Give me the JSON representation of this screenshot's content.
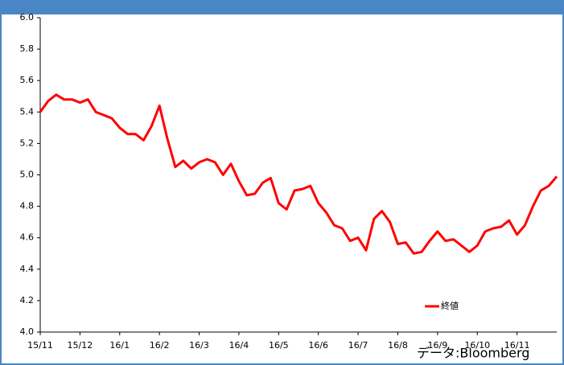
{
  "chart_data": {
    "type": "line",
    "categories": [
      "15/11",
      null,
      null,
      null,
      null,
      "15/12",
      null,
      null,
      null,
      null,
      "16/1",
      null,
      null,
      null,
      null,
      "16/2",
      null,
      null,
      null,
      null,
      "16/3",
      null,
      null,
      null,
      null,
      "16/4",
      null,
      null,
      null,
      null,
      "16/5",
      null,
      null,
      null,
      null,
      "16/6",
      null,
      null,
      null,
      null,
      "16/7",
      null,
      null,
      null,
      null,
      "16/8",
      null,
      null,
      null,
      null,
      "16/9",
      null,
      null,
      null,
      null,
      "16/10",
      null,
      null,
      null,
      null,
      "16/11",
      null,
      null,
      null,
      null,
      null
    ],
    "series": [
      {
        "name": "終値",
        "color": "#ff0000",
        "values": [
          5.4,
          5.47,
          5.51,
          5.48,
          5.48,
          5.46,
          5.48,
          5.4,
          5.38,
          5.36,
          5.3,
          5.26,
          5.26,
          5.22,
          5.31,
          5.44,
          5.23,
          5.05,
          5.09,
          5.04,
          5.08,
          5.1,
          5.08,
          5.0,
          5.07,
          4.96,
          4.87,
          4.88,
          4.95,
          4.98,
          4.82,
          4.78,
          4.9,
          4.91,
          4.93,
          4.82,
          4.76,
          4.68,
          4.66,
          4.58,
          4.6,
          4.52,
          4.72,
          4.77,
          4.7,
          4.56,
          4.57,
          4.5,
          4.51,
          4.58,
          4.64,
          4.58,
          4.59,
          4.55,
          4.51,
          4.55,
          4.64,
          4.66,
          4.67,
          4.71,
          4.62,
          4.68,
          4.8,
          4.9,
          4.93,
          4.99
        ]
      }
    ],
    "ylim": [
      4.0,
      6.0
    ],
    "yticks": [
      {
        "value": 4.0,
        "label": "4.0"
      },
      {
        "value": 4.2,
        "label": "4.2"
      },
      {
        "value": 4.4,
        "label": "4.4"
      },
      {
        "value": 4.6,
        "label": "4.6"
      },
      {
        "value": 4.8,
        "label": "4.8"
      },
      {
        "value": 5.0,
        "label": "5.0"
      },
      {
        "value": 5.2,
        "label": "5.2"
      },
      {
        "value": 5.4,
        "label": "5.4"
      },
      {
        "value": 5.6,
        "label": "5.6"
      },
      {
        "value": 5.8,
        "label": "5.8"
      },
      {
        "value": 6.0,
        "label": "6.0"
      }
    ],
    "legend": "lower right",
    "source": "データ:Bloomberg"
  }
}
